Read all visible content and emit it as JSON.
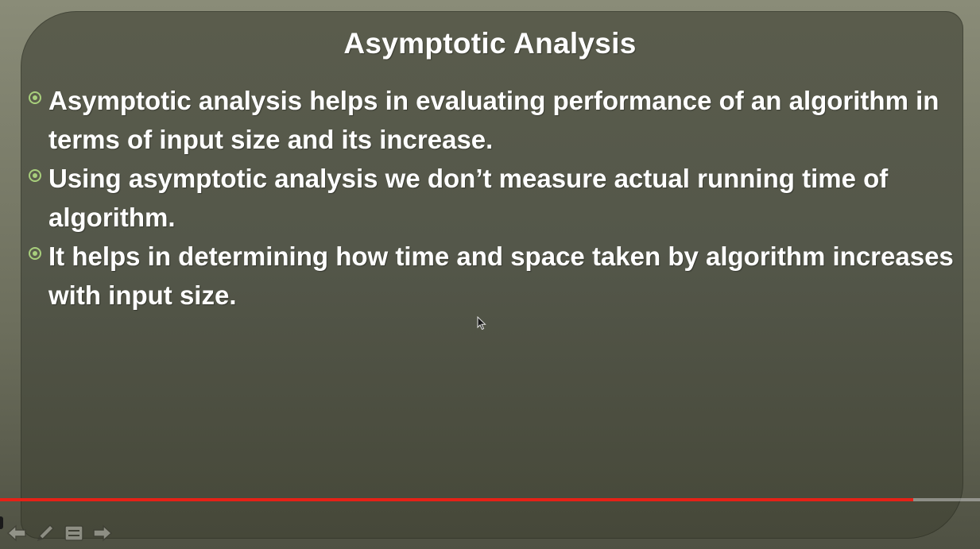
{
  "slide": {
    "title": "Asymptotic Analysis",
    "bullets": [
      "Asymptotic analysis helps in evaluating performance of an algorithm in terms of input size and its increase.",
      "Using asymptotic analysis we don’t measure actual running time of algorithm.",
      "It helps in determining how time and space taken by algorithm increases with input size."
    ]
  },
  "player": {
    "progress_fraction": 0.932,
    "progress_color": "#e62117",
    "controls": [
      "previous-slide-icon",
      "pen-icon",
      "slide-menu-icon",
      "next-slide-icon"
    ]
  },
  "colors": {
    "slide_background": "#54574a",
    "bullet_accent": "#a8cf7c",
    "text": "#ffffff"
  }
}
